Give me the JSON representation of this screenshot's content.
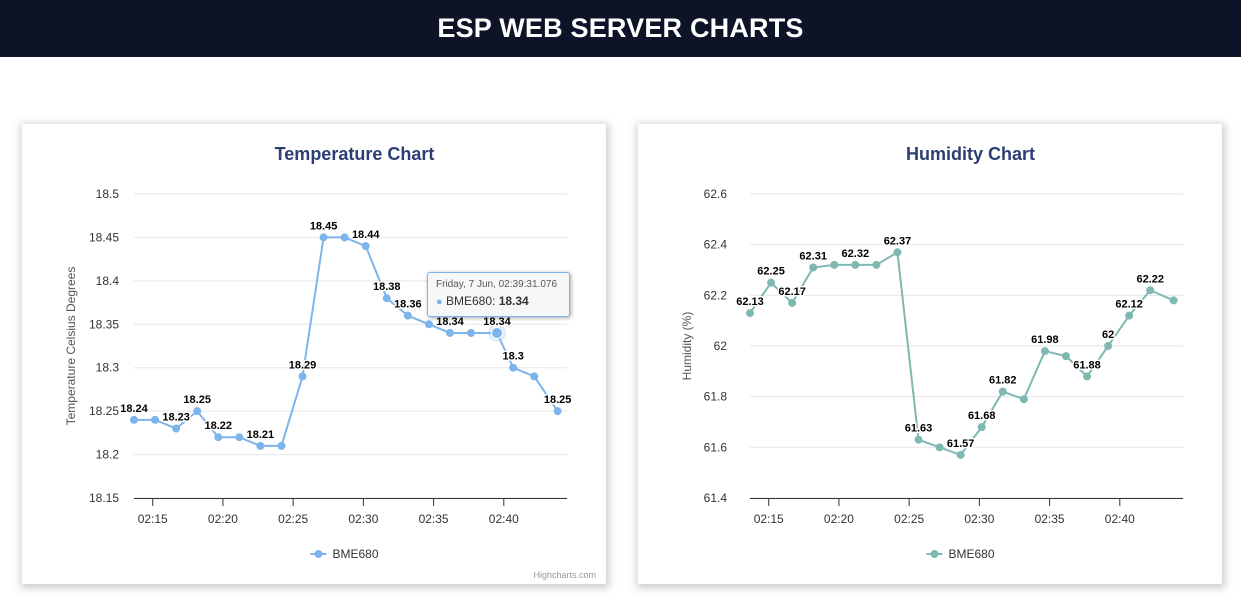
{
  "header": {
    "title": "ESP WEB SERVER CHARTS"
  },
  "temperature_card": {
    "credits": "Highcharts.com",
    "tooltip": {
      "header": "Friday, 7 Jun, 02:39:31.076",
      "series": "BME680",
      "value": "18.34"
    }
  },
  "chart_data": [
    {
      "type": "line",
      "title": "Temperature Chart",
      "xlabel": "",
      "ylabel": "Temperature Celsius Degrees",
      "ylim": [
        18.15,
        18.5
      ],
      "yticks": [
        "18.15",
        "18.2",
        "18.25",
        "18.3",
        "18.35",
        "18.4",
        "18.45",
        "18.5"
      ],
      "xlim": [
        "02:13:40",
        "02:44:30"
      ],
      "xticks": [
        "02:15",
        "02:20",
        "02:25",
        "02:30",
        "02:35",
        "02:40"
      ],
      "grid": true,
      "color": "#7cb5ec",
      "legend": "bottom-center",
      "series": [
        {
          "name": "BME680",
          "x": [
            "02:13:40",
            "02:15:10",
            "02:16:40",
            "02:18:10",
            "02:19:40",
            "02:21:10",
            "02:22:40",
            "02:24:10",
            "02:25:40",
            "02:27:10",
            "02:28:40",
            "02:30:10",
            "02:31:40",
            "02:33:10",
            "02:34:40",
            "02:36:10",
            "02:37:40",
            "02:39:31",
            "02:40:40",
            "02:42:10",
            "02:43:50"
          ],
          "values": [
            18.24,
            18.24,
            18.23,
            18.25,
            18.22,
            18.22,
            18.21,
            18.21,
            18.29,
            18.45,
            18.45,
            18.44,
            18.38,
            18.36,
            18.35,
            18.34,
            18.34,
            18.34,
            18.3,
            18.29,
            18.25
          ],
          "labels": [
            "18.24",
            "",
            "18.23",
            "18.25",
            "18.22",
            "",
            "18.21",
            "",
            "18.29",
            "18.45",
            "",
            "18.44",
            "18.38",
            "18.36",
            "",
            "18.34",
            "",
            "18.34",
            "18.3",
            "",
            "18.25"
          ]
        }
      ]
    },
    {
      "type": "line",
      "title": "Humidity Chart",
      "xlabel": "",
      "ylabel": "Humidity (%)",
      "ylim": [
        61.4,
        62.6
      ],
      "yticks": [
        "61.4",
        "61.6",
        "61.8",
        "62",
        "62.2",
        "62.4",
        "62.6"
      ],
      "xlim": [
        "02:13:40",
        "02:44:30"
      ],
      "xticks": [
        "02:15",
        "02:20",
        "02:25",
        "02:30",
        "02:35",
        "02:40"
      ],
      "grid": true,
      "color": "#7fb8b3",
      "legend": "bottom-center",
      "series": [
        {
          "name": "BME680",
          "x": [
            "02:13:40",
            "02:15:10",
            "02:16:40",
            "02:18:10",
            "02:19:40",
            "02:21:10",
            "02:22:40",
            "02:24:10",
            "02:25:40",
            "02:27:10",
            "02:28:40",
            "02:30:10",
            "02:31:40",
            "02:33:10",
            "02:34:40",
            "02:36:10",
            "02:37:40",
            "02:39:10",
            "02:40:40",
            "02:42:10",
            "02:43:50"
          ],
          "values": [
            62.13,
            62.25,
            62.17,
            62.31,
            62.32,
            62.32,
            62.32,
            62.37,
            61.63,
            61.6,
            61.57,
            61.68,
            61.82,
            61.79,
            61.98,
            61.96,
            61.88,
            62.0,
            62.12,
            62.22,
            62.18
          ],
          "labels": [
            "62.13",
            "62.25",
            "62.17",
            "62.31",
            "",
            "62.32",
            "",
            "62.37",
            "61.63",
            "",
            "61.57",
            "61.68",
            "61.82",
            "",
            "61.98",
            "",
            "61.88",
            "62",
            "62.12",
            "62.22",
            ""
          ]
        }
      ]
    }
  ]
}
